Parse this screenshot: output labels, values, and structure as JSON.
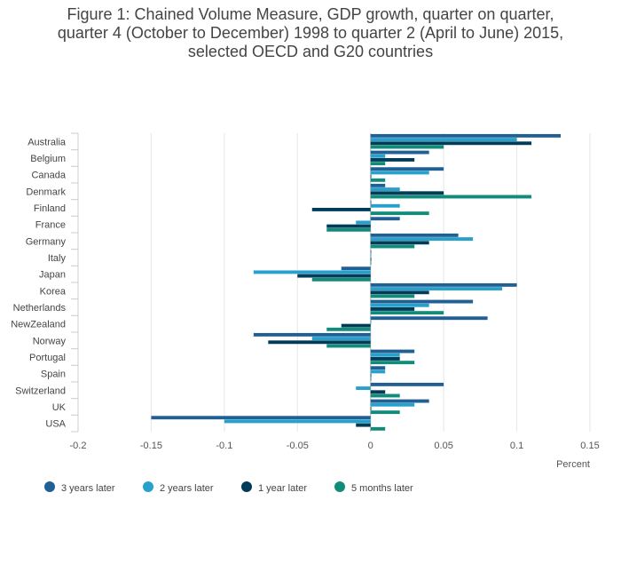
{
  "chart_data": {
    "type": "bar",
    "orientation": "horizontal",
    "title_lines": [
      "Figure 1: Chained Volume Measure, GDP growth, quarter on quarter,",
      "quarter 4 (October to December) 1998 to quarter 2 (April to June) 2015,",
      "selected OECD and G20 countries"
    ],
    "xlabel": "Percent",
    "ylabel": "",
    "xlim": [
      -0.2,
      0.15
    ],
    "x_ticks": [
      -0.2,
      -0.15,
      -0.1,
      -0.05,
      0,
      0.05,
      0.1,
      0.15
    ],
    "x_tick_labels": [
      "-0.2",
      "-0.15",
      "-0.1",
      "-0.05",
      "0",
      "0.05",
      "0.1",
      "0.15"
    ],
    "grid": true,
    "legend_position": "bottom-left",
    "categories": [
      "Australia",
      "Belgium",
      "Canada",
      "Denmark",
      "Finland",
      "France",
      "Germany",
      "Italy",
      "Japan",
      "Korea",
      "Netherlands",
      "NewZealand",
      "Norway",
      "Portugal",
      "Spain",
      "Switzerland",
      "UK",
      "USA"
    ],
    "series": [
      {
        "name": "3 years later",
        "color": "#206095",
        "values": [
          0.13,
          0.04,
          0.05,
          0.01,
          0.0,
          0.02,
          0.06,
          0.0,
          -0.02,
          0.1,
          0.07,
          0.08,
          -0.08,
          0.03,
          0.01,
          0.05,
          0.04,
          -0.15
        ]
      },
      {
        "name": "2 years later",
        "color": "#27a0cc",
        "values": [
          0.1,
          0.01,
          0.04,
          0.02,
          0.02,
          -0.01,
          0.07,
          0.0,
          -0.08,
          0.09,
          0.04,
          0.0,
          -0.04,
          0.02,
          0.01,
          -0.01,
          0.03,
          -0.1
        ]
      },
      {
        "name": "1 year later",
        "color": "#003c57",
        "values": [
          0.11,
          0.03,
          0.0,
          0.05,
          -0.04,
          -0.03,
          0.04,
          0.0,
          -0.05,
          0.04,
          0.03,
          -0.02,
          -0.07,
          0.02,
          0.0,
          0.01,
          0.0,
          -0.01
        ]
      },
      {
        "name": "5 months later",
        "color": "#118c7b",
        "values": [
          0.05,
          0.01,
          0.01,
          0.11,
          0.04,
          -0.03,
          0.03,
          0.0,
          -0.04,
          0.03,
          0.05,
          -0.03,
          -0.03,
          0.03,
          0.0,
          0.02,
          0.02,
          0.01
        ]
      }
    ]
  }
}
